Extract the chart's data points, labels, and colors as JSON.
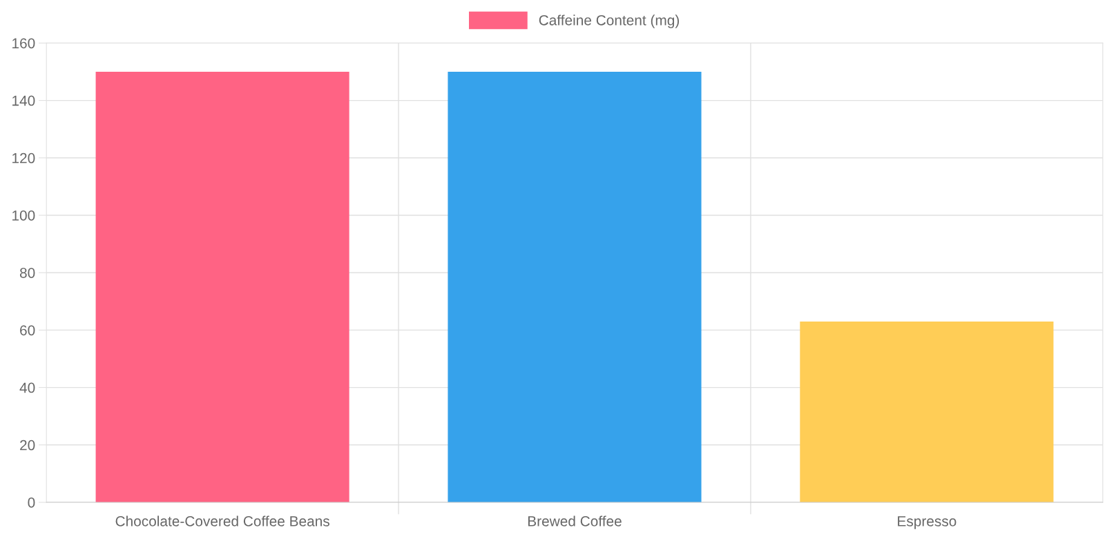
{
  "chart_data": {
    "type": "bar",
    "categories": [
      "Chocolate-Covered Coffee Beans",
      "Brewed Coffee",
      "Espresso"
    ],
    "series": [
      {
        "name": "Caffeine Content (mg)",
        "colors": [
          "#ff6384",
          "#36a2eb",
          "#ffcd56"
        ],
        "values": [
          150,
          150,
          63
        ]
      }
    ],
    "ylim": [
      0,
      160
    ],
    "yticks": [
      0,
      20,
      40,
      60,
      80,
      100,
      120,
      140,
      160
    ],
    "grid": true,
    "legend": "top"
  }
}
